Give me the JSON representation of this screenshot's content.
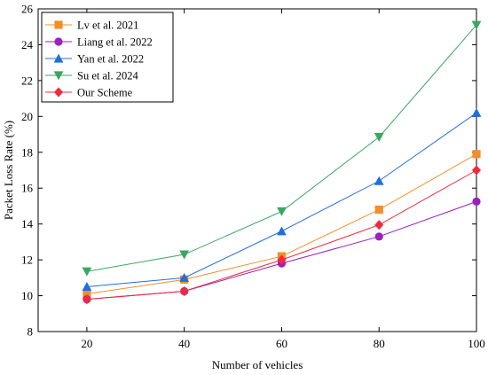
{
  "chart_data": {
    "type": "line",
    "xlabel": "Number of vehicles",
    "ylabel": "Packet Loss Rate (%)",
    "xlim": [
      10,
      100
    ],
    "ylim": [
      8,
      26
    ],
    "x_ticks": [
      20,
      40,
      60,
      80,
      100
    ],
    "y_ticks": [
      8,
      10,
      12,
      14,
      16,
      18,
      20,
      22,
      24,
      26
    ],
    "legend_position": "top-left",
    "grid": false,
    "x": [
      20,
      40,
      60,
      80,
      100
    ],
    "series": [
      {
        "name": "Lv et al.  2021",
        "values": [
          10.1,
          10.9,
          12.2,
          14.8,
          17.9
        ],
        "color": "#f28e2b",
        "marker": "square"
      },
      {
        "name": "Liang et al.  2022",
        "values": [
          9.8,
          10.25,
          11.8,
          13.3,
          15.25
        ],
        "color": "#9b1fbf",
        "marker": "circle"
      },
      {
        "name": "Yan et al.  2022",
        "values": [
          10.5,
          11.0,
          13.6,
          16.4,
          20.2
        ],
        "color": "#1f6fdc",
        "marker": "triangle-up"
      },
      {
        "name": "Su et al.  2024",
        "values": [
          11.35,
          12.3,
          14.7,
          18.85,
          25.1
        ],
        "color": "#3aa760",
        "marker": "triangle-down"
      },
      {
        "name": "Our Scheme",
        "values": [
          9.8,
          10.25,
          12.0,
          13.95,
          17.0
        ],
        "color": "#ee2b3b",
        "marker": "diamond"
      }
    ]
  }
}
